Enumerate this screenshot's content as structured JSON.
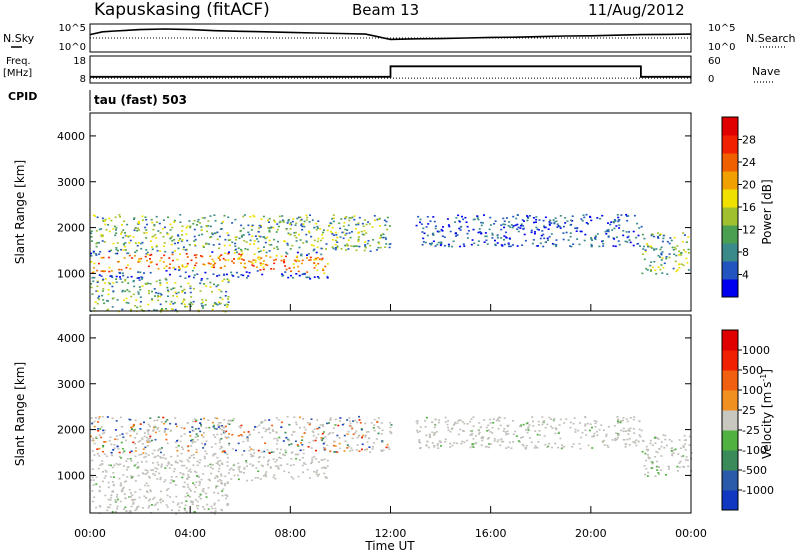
{
  "header": {
    "station": "Kapuskasing (fitACF)",
    "beam": "Beam 13",
    "date": "11/Aug/2012",
    "cpid_label": "CPID",
    "cpid_value": "tau (fast) 503"
  },
  "chart_data": [
    {
      "type": "line",
      "panel": "noise",
      "left_label": "N.Sky",
      "right_label": "N.Search",
      "left_ticks": [
        "10^5",
        "10^0"
      ],
      "right_ticks": [
        "10^5",
        "10^0"
      ],
      "series": [
        {
          "name": "N.Sky",
          "style": "solid",
          "x": [
            0,
            0.5,
            1,
            2,
            3,
            4,
            5,
            6,
            7,
            8,
            9,
            10,
            11,
            12,
            13,
            14,
            15,
            16,
            17,
            18,
            19,
            20,
            21,
            22,
            23,
            24
          ],
          "y_frac": [
            0.62,
            0.72,
            0.75,
            0.8,
            0.82,
            0.8,
            0.76,
            0.74,
            0.72,
            0.7,
            0.68,
            0.66,
            0.64,
            0.45,
            0.47,
            0.48,
            0.5,
            0.52,
            0.53,
            0.55,
            0.57,
            0.58,
            0.6,
            0.62,
            0.63,
            0.64
          ]
        },
        {
          "name": "N.Search",
          "style": "dotted",
          "x": [
            0,
            24
          ],
          "y_frac": [
            0.5,
            0.5
          ]
        }
      ]
    },
    {
      "type": "line",
      "panel": "frequency",
      "left_label": "Freq.",
      "left_unit": "[MHz]",
      "right_label": "Nave",
      "left_ticks": [
        "18",
        "8"
      ],
      "right_ticks": [
        "60",
        "0"
      ],
      "series": [
        {
          "name": "Freq.",
          "style": "solid",
          "x": [
            0,
            0.05,
            12,
            12,
            22,
            22,
            24
          ],
          "y": [
            10.3,
            10.3,
            10.3,
            14.2,
            14.2,
            10.3,
            10.3
          ]
        },
        {
          "name": "Nave",
          "style": "dotted",
          "x": [
            0,
            24
          ],
          "y": [
            9.8,
            9.8
          ]
        }
      ],
      "ylim": [
        8,
        18
      ]
    },
    {
      "type": "heatmap",
      "panel": "power",
      "ylabel": "Slant Range [km]",
      "yticks": [
        1000,
        2000,
        3000,
        4000
      ],
      "ylim": [
        180,
        4500
      ],
      "xlim": [
        0,
        24
      ],
      "colorbar": {
        "label": "Power [dB]",
        "ticks": [
          "4",
          "8",
          "12",
          "16",
          "20",
          "24",
          "28"
        ],
        "colors": [
          "#0000f0",
          "#2255c0",
          "#3a8a8a",
          "#4aa050",
          "#a0c030",
          "#f0e000",
          "#f0a000",
          "#f06000",
          "#f02000",
          "#e00000"
        ]
      },
      "regions": [
        {
          "x": [
            0,
            9.5
          ],
          "y": [
            900,
            1500
          ],
          "power": "high"
        },
        {
          "x": [
            0,
            12
          ],
          "y": [
            1500,
            2300
          ],
          "power": "medium"
        },
        {
          "x": [
            13,
            22
          ],
          "y": [
            1600,
            2300
          ],
          "power": "low"
        },
        {
          "x": [
            22,
            24
          ],
          "y": [
            1000,
            1900
          ],
          "power": "medium-high"
        },
        {
          "x": [
            0,
            5.5
          ],
          "y": [
            180,
            900
          ],
          "power": "medium"
        }
      ]
    },
    {
      "type": "heatmap",
      "panel": "velocity",
      "ylabel": "Slant Range [km]",
      "yticks": [
        1000,
        2000,
        3000,
        4000
      ],
      "ylim": [
        180,
        4500
      ],
      "xlim": [
        0,
        24
      ],
      "xlabel": "Time UT",
      "xticks": [
        "00:00",
        "04:00",
        "08:00",
        "12:00",
        "16:00",
        "20:00",
        "00:00"
      ],
      "colorbar": {
        "label": "Velocity [m s",
        "label_sup": "-1",
        "label_close": "]",
        "ticks": [
          "1000",
          "500",
          "100",
          "25",
          "-25",
          "-100",
          "-500",
          "-1000"
        ],
        "colors": [
          "#1038c0",
          "#2a5aaa",
          "#3a8a5a",
          "#50b040",
          "#c8c8c0",
          "#f09020",
          "#f06010",
          "#f02000",
          "#e00000"
        ]
      }
    }
  ],
  "colors": {
    "ground_scatter": "#c0bfb8",
    "frame": "#000000"
  }
}
